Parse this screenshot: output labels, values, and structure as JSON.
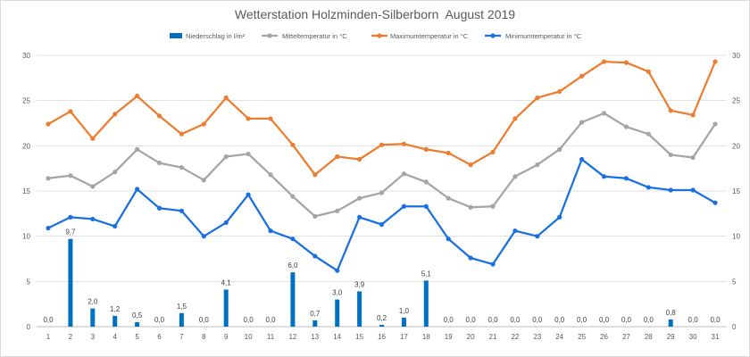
{
  "chart_data": {
    "type": "bar",
    "title": "Wetterstation Holzminden-Silberborn  August 2019",
    "xlabel": "",
    "ylabel": "",
    "ylim": [
      0,
      30
    ],
    "y2lim": [
      0,
      30
    ],
    "yticks": [
      0,
      5,
      10,
      15,
      20,
      25,
      30
    ],
    "grid": true,
    "legend_position": "top",
    "categories": [
      1,
      2,
      3,
      4,
      5,
      6,
      7,
      8,
      9,
      10,
      11,
      12,
      13,
      14,
      15,
      16,
      17,
      18,
      19,
      20,
      21,
      22,
      23,
      24,
      25,
      26,
      27,
      28,
      29,
      30,
      31
    ],
    "series": [
      {
        "name": "Niederschlag in l/m²",
        "type": "bar",
        "color": "#0070C0",
        "values": [
          0.0,
          9.7,
          2.0,
          1.2,
          0.5,
          0.0,
          1.5,
          0.0,
          4.1,
          0.0,
          0.0,
          6.0,
          0.7,
          3.0,
          3.9,
          0.2,
          1.0,
          5.1,
          0.0,
          0.0,
          0.0,
          0.0,
          0.0,
          0.0,
          0.0,
          0.0,
          0.0,
          0.0,
          0.8,
          0.0,
          0.0
        ],
        "labels": [
          "0,0",
          "9,7",
          "2,0",
          "1,2",
          "0,5",
          "0,0",
          "1,5",
          "0,0",
          "4,1",
          "0,0",
          "0,0",
          "6,0",
          "0,7",
          "3,0",
          "3,9",
          "0,2",
          "1,0",
          "5,1",
          "0,0",
          "0,0",
          "0,0",
          "0,0",
          "0,0",
          "0,0",
          "0,0",
          "0,0",
          "0,0",
          "0,0",
          "0,8",
          "0,0",
          "0,0"
        ]
      },
      {
        "name": "Mitteltemperatur in °C",
        "type": "line",
        "color": "#A5A5A5",
        "values": [
          16.4,
          16.7,
          15.5,
          17.1,
          19.6,
          18.1,
          17.6,
          16.2,
          18.8,
          19.1,
          16.8,
          14.4,
          12.2,
          12.8,
          14.2,
          14.8,
          16.9,
          16.0,
          14.2,
          13.2,
          13.3,
          16.6,
          17.9,
          19.6,
          22.6,
          23.6,
          22.1,
          21.3,
          19.0,
          18.7,
          22.4
        ]
      },
      {
        "name": "Maximumtemperatur in °C",
        "type": "line",
        "color": "#ED7D31",
        "values": [
          22.4,
          23.8,
          20.8,
          23.5,
          25.5,
          23.3,
          21.3,
          22.4,
          25.3,
          23.0,
          23.0,
          20.1,
          16.8,
          18.8,
          18.5,
          20.1,
          20.2,
          19.6,
          19.2,
          17.9,
          19.3,
          23.0,
          25.3,
          26.0,
          27.7,
          29.3,
          29.2,
          28.2,
          23.9,
          23.4,
          29.3
        ]
      },
      {
        "name": "Minimumtemperatur in °C",
        "type": "line",
        "color": "#1A70E0",
        "values": [
          10.9,
          12.1,
          11.9,
          11.1,
          15.2,
          13.1,
          12.8,
          10.0,
          11.5,
          14.6,
          10.6,
          9.7,
          7.8,
          6.2,
          12.1,
          11.3,
          13.3,
          13.3,
          9.7,
          7.6,
          6.9,
          10.6,
          10.0,
          12.1,
          18.5,
          16.6,
          16.4,
          15.4,
          15.1,
          15.1,
          13.7
        ]
      }
    ]
  }
}
